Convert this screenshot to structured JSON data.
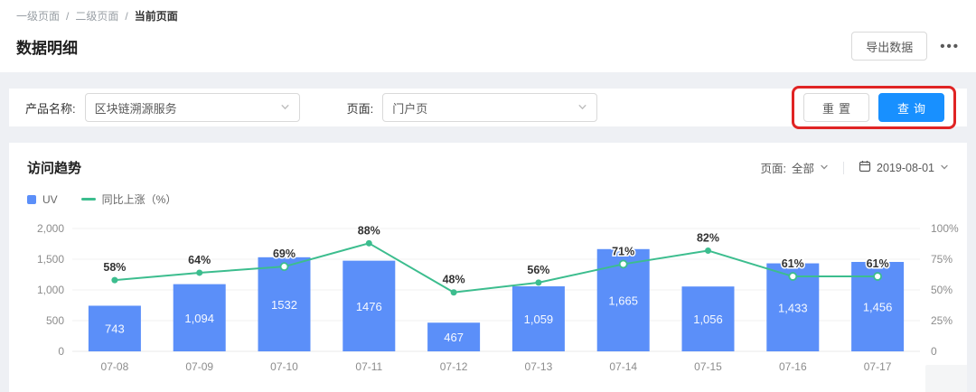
{
  "breadcrumb": {
    "separator": "/",
    "items": [
      "一级页面",
      "二级页面",
      "当前页面"
    ]
  },
  "header": {
    "title": "数据明细",
    "export_label": "导出数据",
    "more_icon": "•••"
  },
  "filters": {
    "product_label": "产品名称:",
    "product_value": "区块链溯源服务",
    "page_label": "页面:",
    "page_value": "门户页",
    "reset_label": "重置",
    "query_label": "查询"
  },
  "chart_card": {
    "title": "访问趋势",
    "page_filter_label": "页面:",
    "page_filter_value": "全部",
    "date_value": "2019-08-01",
    "legend": [
      {
        "label": "UV",
        "color": "#5B8FF9",
        "type": "square"
      },
      {
        "label": "同比上涨（%）",
        "color": "#3CBD8E",
        "type": "line"
      }
    ]
  },
  "chart_data": {
    "type": "bar",
    "categories": [
      "07-08",
      "07-09",
      "07-10",
      "07-11",
      "07-12",
      "07-13",
      "07-14",
      "07-15",
      "07-16",
      "07-17"
    ],
    "series": [
      {
        "name": "UV",
        "type": "bar",
        "color": "#5B8FF9",
        "axis": "left",
        "values": [
          743,
          1094,
          1532,
          1476,
          467,
          1059,
          1665,
          1056,
          1433,
          1456
        ],
        "labels": [
          "743",
          "1,094",
          "1532",
          "1476",
          "467",
          "1,059",
          "1,665",
          "1,056",
          "1,433",
          "1,456"
        ]
      },
      {
        "name": "同比上涨 (%)",
        "type": "line",
        "color": "#3CBD8E",
        "axis": "right",
        "values": [
          58,
          64,
          69,
          88,
          48,
          56,
          71,
          82,
          61,
          61
        ],
        "labels": [
          "58%",
          "64%",
          "69%",
          "88%",
          "48%",
          "56%",
          "71%",
          "82%",
          "61%",
          "61%"
        ]
      }
    ],
    "left_axis": {
      "ticks": [
        "0",
        "500",
        "1,000",
        "1,500",
        "2,000"
      ],
      "min": 0,
      "max": 2000
    },
    "right_axis": {
      "ticks": [
        "0",
        "25%",
        "50%",
        "75%",
        "100%"
      ],
      "min": 0,
      "max": 100
    },
    "grid": true,
    "legend_position": "top-left"
  },
  "colors": {
    "primary": "#1890ff",
    "bar": "#5B8FF9",
    "line": "#3CBD8E",
    "annotation": "#e02424",
    "grid": "#f0f0f0",
    "axis_text": "#8c8c8c"
  }
}
